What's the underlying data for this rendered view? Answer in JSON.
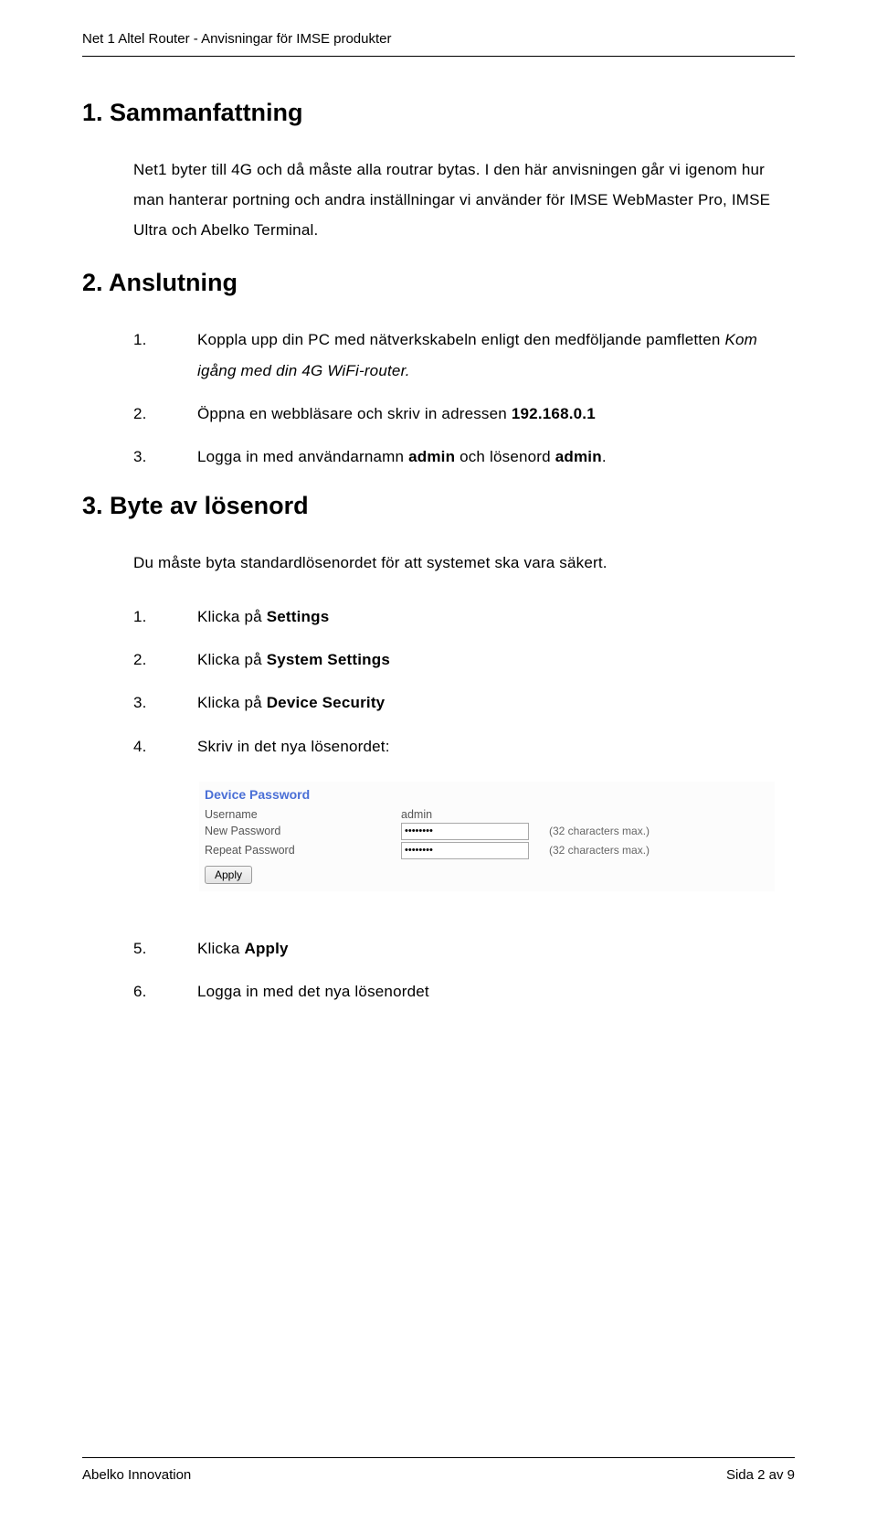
{
  "header": {
    "title": "Net 1 Altel Router - Anvisningar för IMSE produkter"
  },
  "sections": {
    "s1": {
      "heading": "1. Sammanfattning",
      "para": "Net1 byter till 4G och då måste alla routrar bytas. I den här anvisningen går vi igenom hur man hanterar portning och andra inställningar vi använder för IMSE WebMaster Pro, IMSE Ultra och Abelko Terminal."
    },
    "s2": {
      "heading": "2. Anslutning",
      "items": [
        {
          "n": "1.",
          "pre": "Koppla upp din PC med nätverkskabeln enligt den medföljande pamfletten ",
          "italic": "Kom igång med din 4G WiFi-router.",
          "post": ""
        },
        {
          "n": "2.",
          "pre": "Öppna en webbläsare och skriv in adressen ",
          "bold": "192.168.0.1",
          "post": ""
        },
        {
          "n": "3.",
          "pre": "Logga in med användarnamn ",
          "bold": "admin",
          "mid": " och lösenord ",
          "bold2": "admin",
          "post": "."
        }
      ]
    },
    "s3": {
      "heading": "3. Byte av lösenord",
      "para": "Du måste byta standardlösenordet för att systemet ska vara säkert.",
      "items_a": [
        {
          "n": "1.",
          "pre": "Klicka på ",
          "bold": "Settings"
        },
        {
          "n": "2.",
          "pre": "Klicka på ",
          "bold": "System Settings"
        },
        {
          "n": "3.",
          "pre": "Klicka på ",
          "bold": "Device Security"
        },
        {
          "n": "4.",
          "pre": "Skriv in det nya lösenordet:",
          "bold": ""
        }
      ],
      "items_b": [
        {
          "n": "5.",
          "pre": "Klicka ",
          "bold": "Apply"
        },
        {
          "n": "6.",
          "pre": "Logga in med det nya lösenordet",
          "bold": ""
        }
      ]
    }
  },
  "form": {
    "title": "Device Password",
    "rows": {
      "username": {
        "label": "Username",
        "value": "admin"
      },
      "new_password": {
        "label": "New Password",
        "value": "••••••••",
        "note": "(32 characters max.)"
      },
      "repeat_password": {
        "label": "Repeat Password",
        "value": "••••••••",
        "note": "(32 characters max.)"
      }
    },
    "apply": "Apply"
  },
  "footer": {
    "left": "Abelko Innovation",
    "right": "Sida 2 av 9"
  },
  "colors": {
    "link_blue": "#4a6fd6",
    "text": "#000000",
    "form_label": "#555555",
    "border": "#000000"
  }
}
